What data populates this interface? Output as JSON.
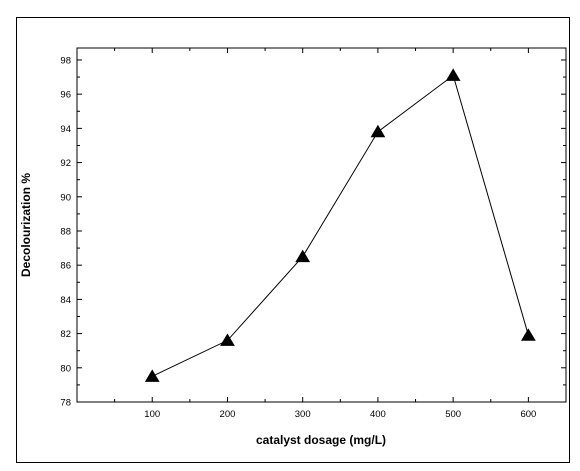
{
  "chart_data": {
    "type": "line",
    "title": "",
    "xlabel": "catalyst dosage (mg/L)",
    "ylabel": "Decolourization %",
    "x": [
      100,
      200,
      300,
      400,
      500,
      600
    ],
    "series": [
      {
        "name": "",
        "values": [
          79.5,
          81.6,
          86.5,
          93.8,
          97.1,
          81.9
        ],
        "marker": "triangle",
        "color": "#000000"
      }
    ],
    "xlim": [
      0,
      650
    ],
    "ylim": [
      78,
      98.7
    ],
    "xticks": [
      100,
      200,
      300,
      400,
      500,
      600
    ],
    "yticks": [
      78,
      80,
      82,
      84,
      86,
      88,
      90,
      92,
      94,
      96,
      98
    ],
    "xtick_labels": [
      "100",
      "200",
      "300",
      "400",
      "500",
      "600"
    ],
    "ytick_labels": [
      "78",
      "80",
      "82",
      "84",
      "86",
      "88",
      "90",
      "92",
      "94",
      "96",
      "98"
    ],
    "grid": false,
    "legend": "none"
  }
}
